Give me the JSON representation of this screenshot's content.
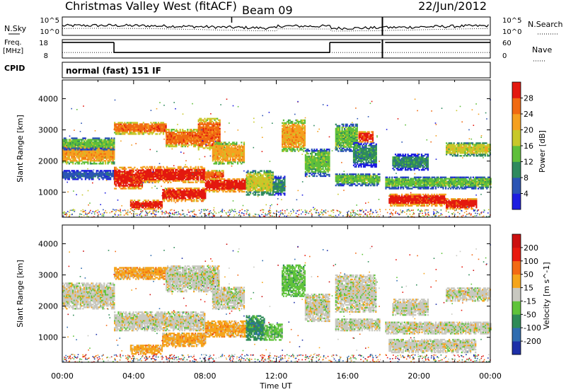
{
  "header": {
    "title": "Christmas Valley West (fitACF)",
    "beam": "Beam 09",
    "date": "22/Jun/2012"
  },
  "chart_data": [
    {
      "type": "line",
      "panel": "nsky-nsearch",
      "left_label": "N.Sky",
      "right_label": "N.Search",
      "left_ticks": [
        "10^5",
        "10^0"
      ],
      "right_ticks": [
        "10^5",
        "10^0"
      ],
      "series": [
        {
          "name": "N.Sky",
          "style": "solid"
        },
        {
          "name": "N.Search",
          "style": "dotted"
        }
      ]
    },
    {
      "type": "line",
      "panel": "freq-nave",
      "left_label_line1": "Freq.",
      "left_label_line2": "[MHz]",
      "right_label": "Nave",
      "left_ticks": [
        "18",
        "8"
      ],
      "right_ticks": [
        "60",
        "0"
      ],
      "left_ylim": [
        8,
        18
      ],
      "right_ylim": [
        0,
        60
      ],
      "freq_steps": [
        {
          "t0": 0.0,
          "t1": 2.9,
          "f": 16.5
        },
        {
          "t0": 2.9,
          "t1": 15.0,
          "f": 11.0
        },
        {
          "t0": 15.0,
          "t1": 17.85,
          "f": 16.5
        },
        {
          "t0": 18.1,
          "t1": 24.0,
          "f": 16.5
        }
      ],
      "nave_level": 18
    },
    {
      "type": "table",
      "panel": "cpid",
      "label": "CPID",
      "text": "normal (fast) 151 IF"
    },
    {
      "type": "heatmap",
      "panel": "power",
      "ylabel": "Slant Range [km]",
      "yticks": [
        1000,
        2000,
        3000,
        4000
      ],
      "ylim": [
        200,
        4600
      ],
      "xlim": [
        0,
        24
      ],
      "colorbar": {
        "label": "Power [dB]",
        "ticks": [
          "4",
          "8",
          "12",
          "16",
          "20",
          "24",
          "28"
        ],
        "colors": [
          "#1d1de0",
          "#2b54b4",
          "#2f8a5e",
          "#5fbf3a",
          "#c8c82a",
          "#f5a020",
          "#f06a12",
          "#e3180f"
        ]
      },
      "bands": [
        {
          "t0": 0.0,
          "t1": 2.9,
          "r0": 1900,
          "r1": 2600,
          "lvl": 5
        },
        {
          "t0": 0.0,
          "t1": 2.9,
          "r0": 2350,
          "r1": 2750,
          "lvl": 3
        },
        {
          "t0": 0.0,
          "t1": 2.9,
          "r0": 1400,
          "r1": 1700,
          "lvl": 1
        },
        {
          "t0": 2.9,
          "t1": 5.8,
          "r0": 2850,
          "r1": 3250,
          "lvl": 6
        },
        {
          "t0": 5.8,
          "t1": 7.6,
          "r0": 2450,
          "r1": 3000,
          "lvl": 6
        },
        {
          "t0": 7.6,
          "t1": 8.8,
          "r0": 2350,
          "r1": 3350,
          "lvl": 6
        },
        {
          "t0": 8.4,
          "t1": 10.2,
          "r0": 1900,
          "r1": 2600,
          "lvl": 5
        },
        {
          "t0": 2.9,
          "t1": 4.5,
          "r0": 1100,
          "r1": 1800,
          "lvl": 7
        },
        {
          "t0": 4.5,
          "t1": 8.0,
          "r0": 1300,
          "r1": 1800,
          "lvl": 7
        },
        {
          "t0": 8.0,
          "t1": 9.0,
          "r0": 1400,
          "r1": 1700,
          "lvl": 6
        },
        {
          "t0": 3.8,
          "t1": 5.6,
          "r0": 450,
          "r1": 750,
          "lvl": 7
        },
        {
          "t0": 5.6,
          "t1": 8.0,
          "r0": 700,
          "r1": 1150,
          "lvl": 7
        },
        {
          "t0": 8.0,
          "t1": 10.3,
          "r0": 1000,
          "r1": 1450,
          "lvl": 7
        },
        {
          "t0": 10.3,
          "t1": 11.8,
          "r0": 900,
          "r1": 1700,
          "lvl": 4
        },
        {
          "t0": 11.8,
          "t1": 12.5,
          "r0": 900,
          "r1": 1500,
          "lvl": 2
        },
        {
          "t0": 12.3,
          "t1": 13.6,
          "r0": 2300,
          "r1": 3300,
          "lvl": 5
        },
        {
          "t0": 13.6,
          "t1": 15.0,
          "r0": 1500,
          "r1": 2400,
          "lvl": 3
        },
        {
          "t0": 15.3,
          "t1": 16.5,
          "r0": 2300,
          "r1": 3200,
          "lvl": 3
        },
        {
          "t0": 16.3,
          "t1": 17.6,
          "r0": 1800,
          "r1": 2600,
          "lvl": 2
        },
        {
          "t0": 16.6,
          "t1": 17.4,
          "r0": 2600,
          "r1": 2950,
          "lvl": 7
        },
        {
          "t0": 15.3,
          "t1": 17.8,
          "r0": 1200,
          "r1": 1600,
          "lvl": 3
        },
        {
          "t0": 18.1,
          "t1": 24.0,
          "r0": 1100,
          "r1": 1500,
          "lvl": 3
        },
        {
          "t0": 18.3,
          "t1": 21.5,
          "r0": 550,
          "r1": 950,
          "lvl": 7
        },
        {
          "t0": 21.5,
          "t1": 23.2,
          "r0": 450,
          "r1": 800,
          "lvl": 7
        },
        {
          "t0": 21.5,
          "t1": 24.0,
          "r0": 2150,
          "r1": 2600,
          "lvl": 4
        },
        {
          "t0": 18.5,
          "t1": 20.5,
          "r0": 1700,
          "r1": 2200,
          "lvl": 2
        }
      ]
    },
    {
      "type": "heatmap",
      "panel": "velocity",
      "ylabel": "Slant Range [km]",
      "yticks": [
        1000,
        2000,
        3000,
        4000
      ],
      "ylim": [
        200,
        4600
      ],
      "xlim": [
        0,
        24
      ],
      "xticks": [
        "00:00",
        "04:00",
        "08:00",
        "12:00",
        "16:00",
        "20:00",
        "00:00"
      ],
      "xlabel": "Time UT",
      "colorbar": {
        "label": "Velocity [m s^-1]",
        "ticks": [
          "200",
          "100",
          "50",
          "15",
          "-15",
          "-50",
          "-100",
          "-200"
        ],
        "colors": [
          "#1d2fa8",
          "#2f6db0",
          "#2e8b57",
          "#5fc33a",
          "#c8c8c0",
          "#f5a51c",
          "#f36a14",
          "#e81a0f",
          "#cc1010"
        ]
      },
      "bands": [
        {
          "t0": 0.0,
          "t1": 2.9,
          "r0": 1900,
          "r1": 2750,
          "lvl": 4
        },
        {
          "t0": 2.9,
          "t1": 5.8,
          "r0": 2850,
          "r1": 3250,
          "lvl": 5
        },
        {
          "t0": 5.8,
          "t1": 8.8,
          "r0": 2450,
          "r1": 3300,
          "lvl": 4
        },
        {
          "t0": 8.4,
          "t1": 10.2,
          "r0": 1900,
          "r1": 2600,
          "lvl": 4
        },
        {
          "t0": 2.9,
          "t1": 8.0,
          "r0": 1200,
          "r1": 1800,
          "lvl": 4
        },
        {
          "t0": 3.8,
          "t1": 5.6,
          "r0": 450,
          "r1": 750,
          "lvl": 5
        },
        {
          "t0": 5.6,
          "t1": 8.0,
          "r0": 700,
          "r1": 1150,
          "lvl": 5
        },
        {
          "t0": 8.0,
          "t1": 10.3,
          "r0": 1000,
          "r1": 1500,
          "lvl": 5
        },
        {
          "t0": 10.3,
          "t1": 11.3,
          "r0": 900,
          "r1": 1700,
          "lvl": 2
        },
        {
          "t0": 11.3,
          "t1": 12.3,
          "r0": 900,
          "r1": 1400,
          "lvl": 3
        },
        {
          "t0": 12.3,
          "t1": 13.6,
          "r0": 2300,
          "r1": 3300,
          "lvl": 3
        },
        {
          "t0": 13.6,
          "t1": 15.0,
          "r0": 1500,
          "r1": 2400,
          "lvl": 4
        },
        {
          "t0": 15.3,
          "t1": 17.6,
          "r0": 1800,
          "r1": 3000,
          "lvl": 4
        },
        {
          "t0": 15.3,
          "t1": 17.8,
          "r0": 1200,
          "r1": 1600,
          "lvl": 4
        },
        {
          "t0": 18.1,
          "t1": 24.0,
          "r0": 1100,
          "r1": 1500,
          "lvl": 4
        },
        {
          "t0": 18.3,
          "t1": 23.2,
          "r0": 500,
          "r1": 950,
          "lvl": 4
        },
        {
          "t0": 21.5,
          "t1": 24.0,
          "r0": 2150,
          "r1": 2600,
          "lvl": 4
        },
        {
          "t0": 18.5,
          "t1": 20.5,
          "r0": 1700,
          "r1": 2200,
          "lvl": 4
        }
      ]
    }
  ]
}
